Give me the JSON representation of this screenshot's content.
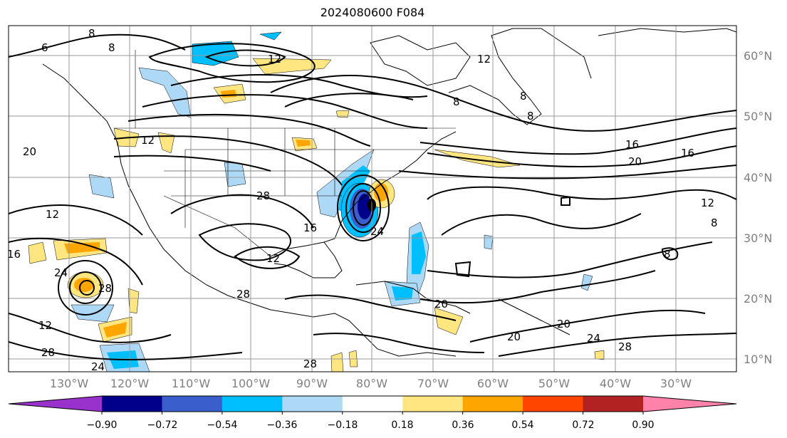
{
  "title": "2024080600 F084",
  "lat_labels": [
    "60°N",
    "50°N",
    "40°N",
    "30°N",
    "20°N",
    "10°N"
  ],
  "lon_labels": [
    "130°W",
    "120°W",
    "110°W",
    "100°W",
    "90°W",
    "80°W",
    "70°W",
    "60°W",
    "50°W",
    "40°W",
    "30°W"
  ],
  "colorbar": {
    "tick_labels": [
      "−0.90",
      "−0.72",
      "−0.54",
      "−0.36",
      "−0.18",
      "0.18",
      "0.36",
      "0.54",
      "0.72",
      "0.90"
    ],
    "colors": [
      "#9932cc",
      "#00008b",
      "#3a5fcd",
      "#00bfff",
      "#add8f6",
      "#ffffff",
      "#ffe680",
      "#ffa500",
      "#ff4500",
      "#b22222",
      "#ff82ab"
    ]
  },
  "contour_labels": [
    "8",
    "8",
    "12",
    "12",
    "8",
    "8",
    "8",
    "6",
    "20",
    "12",
    "16",
    "20",
    "16",
    "12",
    "28",
    "16",
    "12",
    "24",
    "28",
    "12",
    "28",
    "24",
    "20",
    "24",
    "20",
    "20",
    "24",
    "28",
    "12",
    "8",
    "8",
    "28",
    "28"
  ]
}
